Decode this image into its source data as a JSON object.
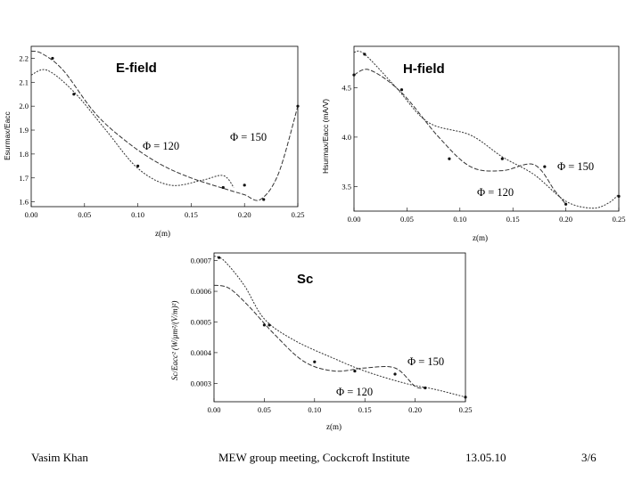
{
  "chart_data": [
    {
      "id": "efield",
      "type": "line",
      "title": "E-field",
      "xlabel": "z(m)",
      "ylabel": "Esurmax/Eacc",
      "xlim": [
        0,
        0.25
      ],
      "ylim": [
        1.58,
        2.25
      ],
      "xticks": [
        "0.00",
        "0.05",
        "0.10",
        "0.15",
        "0.20",
        "0.25"
      ],
      "yticks": [
        "1.6",
        "1.7",
        "1.8",
        "1.9",
        "2.0",
        "2.1",
        "2.2"
      ],
      "series": [
        {
          "name": "Φ = 120",
          "x": [
            0,
            0.015,
            0.04,
            0.07,
            0.1,
            0.13,
            0.16,
            0.18,
            0.19
          ],
          "y": [
            2.13,
            2.15,
            2.06,
            1.9,
            1.74,
            1.67,
            1.69,
            1.71,
            1.66
          ],
          "dots_x": [
            0.04,
            0.1,
            0.18
          ],
          "dots_y": [
            2.05,
            1.75,
            1.66
          ]
        },
        {
          "name": "Φ = 150",
          "x": [
            0,
            0.01,
            0.03,
            0.06,
            0.09,
            0.12,
            0.15,
            0.185,
            0.2,
            0.215,
            0.232,
            0.25
          ],
          "y": [
            2.23,
            2.22,
            2.15,
            1.97,
            1.85,
            1.76,
            1.7,
            1.65,
            1.63,
            1.61,
            1.72,
            2.0
          ],
          "dots_x": [
            0.02,
            0.2,
            0.218,
            0.25
          ],
          "dots_y": [
            2.2,
            1.67,
            1.61,
            2.0
          ]
        }
      ],
      "annotations": [
        "Φ = 120",
        "Φ = 150"
      ]
    },
    {
      "id": "hfield",
      "type": "line",
      "title": "H-field",
      "xlabel": "z(m)",
      "ylabel": "Hsurmax/Eacc (mA/V)",
      "xlim": [
        0,
        0.25
      ],
      "ylim": [
        3.25,
        4.92
      ],
      "xticks": [
        "0.00",
        "0.05",
        "0.10",
        "0.15",
        "0.20",
        "0.25"
      ],
      "yticks": [
        "3.5",
        "4.0",
        "4.5"
      ],
      "series": [
        {
          "name": "Φ = 120",
          "x": [
            0,
            0.015,
            0.045,
            0.08,
            0.11,
            0.14,
            0.17,
            0.19,
            0.2
          ],
          "y": [
            4.63,
            4.68,
            4.45,
            4.0,
            3.7,
            3.66,
            3.72,
            3.45,
            3.32
          ],
          "dots_x": [
            0,
            0.045,
            0.09,
            0.18,
            0.2
          ],
          "dots_y": [
            4.63,
            4.48,
            3.78,
            3.7,
            3.32
          ]
        },
        {
          "name": "Φ = 150",
          "x": [
            0,
            0.01,
            0.04,
            0.07,
            0.11,
            0.14,
            0.17,
            0.2,
            0.225,
            0.24,
            0.25
          ],
          "y": [
            4.86,
            4.84,
            4.5,
            4.15,
            4.02,
            3.8,
            3.62,
            3.35,
            3.28,
            3.33,
            3.42
          ],
          "dots_x": [
            0.01,
            0.14,
            0.25
          ],
          "dots_y": [
            4.84,
            3.78,
            3.4
          ]
        }
      ],
      "annotations": [
        "Φ = 150",
        "Φ = 120"
      ]
    },
    {
      "id": "sc",
      "type": "line",
      "title": "Sc",
      "xlabel": "z(m)",
      "ylabel": "Sc/Eacc² (W/μm²/(V/m)²)",
      "xlim": [
        0,
        0.25
      ],
      "ylim": [
        0.00024,
        0.000725
      ],
      "xticks": [
        "0.00",
        "0.05",
        "0.10",
        "0.15",
        "0.20",
        "0.25"
      ],
      "yticks": [
        "0.0003",
        "0.0004",
        "0.0005",
        "0.0006",
        "0.0007"
      ],
      "series": [
        {
          "name": "Φ = 120",
          "x": [
            0,
            0.015,
            0.035,
            0.06,
            0.09,
            0.12,
            0.15,
            0.18,
            0.2,
            0.21
          ],
          "y": [
            0.00062,
            0.00061,
            0.00055,
            0.00046,
            0.00037,
            0.00034,
            0.00035,
            0.00035,
            0.00029,
            0.000285
          ],
          "dots_x": [
            0.05,
            0.1,
            0.18,
            0.21
          ],
          "dots_y": [
            0.00049,
            0.00037,
            0.00033,
            0.000285
          ]
        },
        {
          "name": "Φ = 150",
          "x": [
            0,
            0.01,
            0.03,
            0.05,
            0.08,
            0.12,
            0.15,
            0.19,
            0.22,
            0.25
          ],
          "y": [
            0.000715,
            0.0007,
            0.00062,
            0.00051,
            0.00044,
            0.00038,
            0.00034,
            0.0003,
            0.00028,
            0.000255
          ],
          "dots_x": [
            0.005,
            0.055,
            0.14,
            0.25
          ],
          "dots_y": [
            0.00071,
            0.00049,
            0.00034,
            0.000255
          ]
        }
      ],
      "annotations": [
        "Φ = 150",
        "Φ = 120"
      ]
    }
  ],
  "footer": {
    "author": "Vasim Khan",
    "event": "MEW group meeting, Cockcroft Institute",
    "date": "13.05.10",
    "page": "3/6"
  }
}
